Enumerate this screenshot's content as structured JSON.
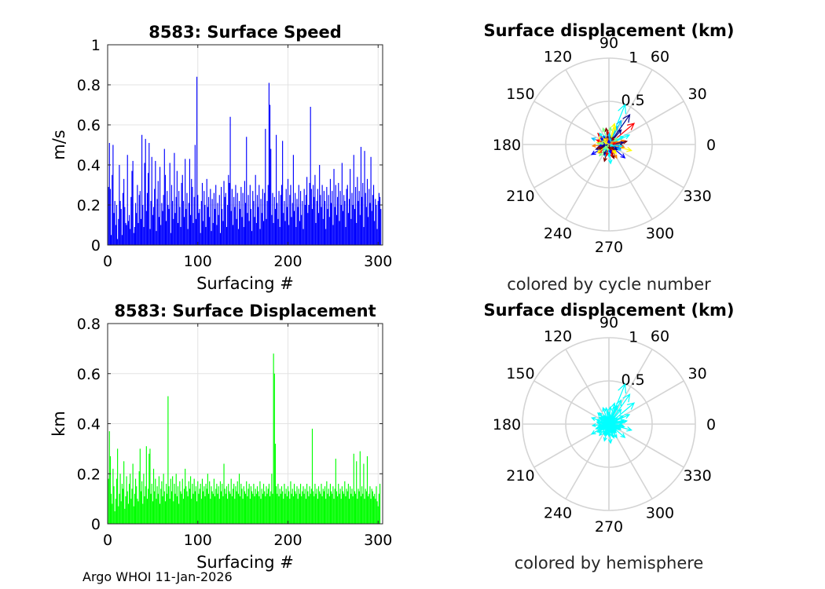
{
  "footer": "Argo WHOI 11-Jan-2026",
  "chart_data": [
    {
      "type": "bar",
      "title": "8583: Surface Speed",
      "xlabel": "Surfacing #",
      "ylabel": "m/s",
      "xlim": [
        0,
        305
      ],
      "ylim": [
        0,
        1
      ],
      "xticks": [
        0,
        100,
        200,
        300
      ],
      "yticks": [
        0,
        0.2,
        0.4,
        0.6,
        0.8,
        1
      ],
      "ytick_labels": [
        "0",
        "0.2",
        "0.4",
        "0.6",
        "0.8",
        "1"
      ],
      "color": "#0000ff",
      "grid": true,
      "values": [
        0.29,
        0.51,
        0.28,
        0.05,
        0.35,
        0.5,
        0.16,
        0.22,
        0.1,
        0.2,
        0.03,
        0.13,
        0.4,
        0.22,
        0.18,
        0.05,
        0.26,
        0.33,
        0.19,
        0.11,
        0.1,
        0.45,
        0.12,
        0.15,
        0.08,
        0.24,
        0.37,
        0.42,
        0.06,
        0.09,
        0.21,
        0.16,
        0.3,
        0.11,
        0.25,
        0.27,
        0.13,
        0.55,
        0.2,
        0.09,
        0.41,
        0.53,
        0.17,
        0.26,
        0.36,
        0.51,
        0.08,
        0.22,
        0.44,
        0.15,
        0.19,
        0.28,
        0.42,
        0.07,
        0.23,
        0.32,
        0.14,
        0.39,
        0.1,
        0.21,
        0.17,
        0.25,
        0.48,
        0.35,
        0.12,
        0.27,
        0.2,
        0.18,
        0.41,
        0.06,
        0.3,
        0.22,
        0.13,
        0.46,
        0.16,
        0.24,
        0.37,
        0.11,
        0.27,
        0.19,
        0.09,
        0.31,
        0.35,
        0.22,
        0.14,
        0.43,
        0.18,
        0.26,
        0.08,
        0.21,
        0.43,
        0.15,
        0.33,
        0.29,
        0.11,
        0.24,
        0.5,
        0.13,
        0.84,
        0.25,
        0.16,
        0.18,
        0.06,
        0.22,
        0.31,
        0.12,
        0.27,
        0.2,
        0.09,
        0.33,
        0.19,
        0.24,
        0.14,
        0.28,
        0.07,
        0.23,
        0.11,
        0.26,
        0.18,
        0.3,
        0.1,
        0.21,
        0.15,
        0.25,
        0.06,
        0.29,
        0.18,
        0.12,
        0.32,
        0.24,
        0.26,
        0.09,
        0.2,
        0.35,
        0.31,
        0.64,
        0.17,
        0.28,
        0.1,
        0.24,
        0.19,
        0.3,
        0.13,
        0.26,
        0.08,
        0.22,
        0.18,
        0.29,
        0.14,
        0.26,
        0.09,
        0.32,
        0.21,
        0.54,
        0.16,
        0.25,
        0.12,
        0.3,
        0.18,
        0.07,
        0.27,
        0.22,
        0.14,
        0.35,
        0.11,
        0.25,
        0.19,
        0.3,
        0.08,
        0.23,
        0.16,
        0.28,
        0.12,
        0.26,
        0.58,
        0.13,
        0.22,
        0.3,
        0.81,
        0.7,
        0.48,
        0.15,
        0.26,
        0.11,
        0.24,
        0.18,
        0.55,
        0.21,
        0.13,
        0.27,
        0.09,
        0.25,
        0.3,
        0.52,
        0.16,
        0.22,
        0.12,
        0.28,
        0.19,
        0.33,
        0.1,
        0.25,
        0.3,
        0.14,
        0.21,
        0.45,
        0.17,
        0.26,
        0.09,
        0.23,
        0.19,
        0.3,
        0.12,
        0.27,
        0.15,
        0.22,
        0.08,
        0.28,
        0.2,
        0.25,
        0.34,
        0.16,
        0.2,
        0.31,
        0.69,
        0.28,
        0.18,
        0.3,
        0.24,
        0.35,
        0.11,
        0.22,
        0.28,
        0.16,
        0.4,
        0.25,
        0.19,
        0.3,
        0.13,
        0.27,
        0.22,
        0.08,
        0.29,
        0.18,
        0.25,
        0.14,
        0.33,
        0.21,
        0.27,
        0.1,
        0.38,
        0.19,
        0.3,
        0.15,
        0.24,
        0.31,
        0.12,
        0.27,
        0.2,
        0.41,
        0.17,
        0.25,
        0.22,
        0.09,
        0.28,
        0.3,
        0.16,
        0.23,
        0.38,
        0.13,
        0.26,
        0.2,
        0.45,
        0.18,
        0.29,
        0.11,
        0.34,
        0.22,
        0.27,
        0.15,
        0.49,
        0.24,
        0.31,
        0.09,
        0.47,
        0.26,
        0.19,
        0.33,
        0.14,
        0.28,
        0.21,
        0.44,
        0.17,
        0.25,
        0.3,
        0.12,
        0.23,
        0.2,
        0.08,
        0.22,
        0.26,
        0.24,
        0.18
      ]
    },
    {
      "type": "bar",
      "title": "8583: Surface Displacement",
      "xlabel": "Surfacing #",
      "ylabel": "km",
      "xlim": [
        0,
        305
      ],
      "ylim": [
        0,
        0.8
      ],
      "xticks": [
        0,
        100,
        200,
        300
      ],
      "yticks": [
        0,
        0.2,
        0.4,
        0.6,
        0.8
      ],
      "ytick_labels": [
        "0",
        "0.2",
        "0.4",
        "0.6",
        "0.8"
      ],
      "color": "#00ff00",
      "grid": true,
      "values": [
        0.18,
        0.37,
        0.27,
        0.12,
        0.08,
        0.22,
        0.15,
        0.05,
        0.1,
        0.18,
        0.3,
        0.07,
        0.12,
        0.2,
        0.09,
        0.16,
        0.14,
        0.25,
        0.06,
        0.11,
        0.19,
        0.13,
        0.08,
        0.16,
        0.2,
        0.1,
        0.14,
        0.24,
        0.07,
        0.12,
        0.18,
        0.15,
        0.1,
        0.09,
        0.21,
        0.3,
        0.13,
        0.17,
        0.08,
        0.2,
        0.11,
        0.15,
        0.31,
        0.1,
        0.14,
        0.28,
        0.3,
        0.12,
        0.16,
        0.09,
        0.22,
        0.13,
        0.18,
        0.1,
        0.15,
        0.12,
        0.19,
        0.08,
        0.14,
        0.17,
        0.11,
        0.2,
        0.13,
        0.09,
        0.16,
        0.12,
        0.51,
        0.15,
        0.1,
        0.18,
        0.13,
        0.19,
        0.09,
        0.16,
        0.12,
        0.2,
        0.11,
        0.15,
        0.08,
        0.17,
        0.13,
        0.12,
        0.18,
        0.1,
        0.14,
        0.22,
        0.15,
        0.13,
        0.11,
        0.17,
        0.14,
        0.19,
        0.1,
        0.16,
        0.12,
        0.18,
        0.13,
        0.15,
        0.09,
        0.17,
        0.12,
        0.14,
        0.16,
        0.1,
        0.18,
        0.13,
        0.15,
        0.11,
        0.16,
        0.14,
        0.2,
        0.12,
        0.17,
        0.1,
        0.15,
        0.13,
        0.12,
        0.18,
        0.11,
        0.14,
        0.16,
        0.12,
        0.15,
        0.1,
        0.17,
        0.13,
        0.16,
        0.11,
        0.24,
        0.14,
        0.12,
        0.15,
        0.1,
        0.16,
        0.13,
        0.12,
        0.18,
        0.11,
        0.14,
        0.16,
        0.1,
        0.15,
        0.13,
        0.17,
        0.12,
        0.2,
        0.11,
        0.16,
        0.14,
        0.1,
        0.15,
        0.13,
        0.12,
        0.17,
        0.11,
        0.14,
        0.16,
        0.1,
        0.15,
        0.13,
        0.12,
        0.16,
        0.11,
        0.14,
        0.12,
        0.15,
        0.13,
        0.11,
        0.17,
        0.1,
        0.14,
        0.12,
        0.16,
        0.13,
        0.11,
        0.15,
        0.12,
        0.14,
        0.16,
        0.11,
        0.13,
        0.2,
        0.12,
        0.68,
        0.6,
        0.32,
        0.15,
        0.12,
        0.16,
        0.11,
        0.14,
        0.12,
        0.15,
        0.13,
        0.1,
        0.16,
        0.12,
        0.14,
        0.11,
        0.15,
        0.13,
        0.1,
        0.17,
        0.12,
        0.14,
        0.11,
        0.16,
        0.13,
        0.12,
        0.15,
        0.1,
        0.14,
        0.12,
        0.16,
        0.11,
        0.13,
        0.15,
        0.12,
        0.14,
        0.1,
        0.16,
        0.13,
        0.11,
        0.15,
        0.12,
        0.14,
        0.38,
        0.13,
        0.11,
        0.16,
        0.12,
        0.14,
        0.1,
        0.15,
        0.13,
        0.12,
        0.16,
        0.11,
        0.14,
        0.13,
        0.15,
        0.1,
        0.17,
        0.12,
        0.14,
        0.11,
        0.16,
        0.13,
        0.12,
        0.15,
        0.1,
        0.14,
        0.26,
        0.13,
        0.11,
        0.16,
        0.12,
        0.14,
        0.1,
        0.15,
        0.13,
        0.12,
        0.17,
        0.11,
        0.14,
        0.13,
        0.16,
        0.1,
        0.15,
        0.12,
        0.14,
        0.11,
        0.28,
        0.13,
        0.12,
        0.25,
        0.1,
        0.14,
        0.13,
        0.29,
        0.11,
        0.15,
        0.12,
        0.24,
        0.1,
        0.14,
        0.13,
        0.27,
        0.11,
        0.12,
        0.15,
        0.1,
        0.14,
        0.13,
        0.11,
        0.12,
        0.1,
        0.15,
        0.09,
        0.07,
        0.12,
        0.16
      ]
    },
    {
      "type": "polar-quiver",
      "title": "Surface displacement (km)",
      "caption": "colored by cycle number",
      "rmax": 1,
      "rticks": [
        0.5,
        1
      ],
      "rtick_labels": [
        "0.5",
        "1"
      ],
      "angle_labels": [
        "0",
        "30",
        "60",
        "90",
        "120",
        "150",
        "180",
        "210",
        "240",
        "270",
        "300",
        "330"
      ],
      "color_scale": [
        "#00008f",
        "#0000ff",
        "#00bfff",
        "#00ffff",
        "#80ff80",
        "#ffff00",
        "#ff8000",
        "#ff0000",
        "#800000"
      ],
      "vectors": [
        [
          0.42,
          55
        ],
        [
          0.5,
          68
        ],
        [
          0.38,
          40
        ],
        [
          0.31,
          63
        ],
        [
          0.25,
          75
        ],
        [
          0.22,
          50
        ],
        [
          0.2,
          110
        ],
        [
          0.18,
          135
        ],
        [
          0.21,
          160
        ],
        [
          0.19,
          185
        ],
        [
          0.23,
          210
        ],
        [
          0.17,
          230
        ],
        [
          0.2,
          255
        ],
        [
          0.22,
          275
        ],
        [
          0.18,
          300
        ],
        [
          0.24,
          320
        ],
        [
          0.27,
          345
        ],
        [
          0.21,
          10
        ],
        [
          0.26,
          25
        ],
        [
          0.15,
          95
        ],
        [
          0.12,
          120
        ],
        [
          0.14,
          170
        ],
        [
          0.16,
          200
        ],
        [
          0.13,
          240
        ],
        [
          0.15,
          285
        ],
        [
          0.12,
          330
        ],
        [
          0.1,
          20
        ],
        [
          0.09,
          80
        ],
        [
          0.11,
          150
        ],
        [
          0.08,
          260
        ],
        [
          0.19,
          30
        ],
        [
          0.16,
          5
        ],
        [
          0.14,
          340
        ],
        [
          0.13,
          310
        ],
        [
          0.17,
          290
        ],
        [
          0.12,
          265
        ],
        [
          0.15,
          220
        ],
        [
          0.11,
          195
        ],
        [
          0.14,
          145
        ],
        [
          0.1,
          100
        ],
        [
          0.2,
          85
        ],
        [
          0.09,
          45
        ],
        [
          0.23,
          65
        ],
        [
          0.18,
          15
        ],
        [
          0.16,
          355
        ],
        [
          0.13,
          175
        ],
        [
          0.12,
          205
        ],
        [
          0.14,
          250
        ],
        [
          0.1,
          315
        ],
        [
          0.11,
          125
        ],
        [
          0.22,
          70
        ],
        [
          0.19,
          100
        ],
        [
          0.17,
          130
        ],
        [
          0.15,
          160
        ],
        [
          0.12,
          190
        ],
        [
          0.16,
          215
        ],
        [
          0.13,
          245
        ],
        [
          0.14,
          270
        ],
        [
          0.11,
          295
        ],
        [
          0.15,
          335
        ],
        [
          0.18,
          350
        ],
        [
          0.17,
          8
        ],
        [
          0.12,
          38
        ],
        [
          0.1,
          58
        ],
        [
          0.13,
          88
        ],
        [
          0.09,
          115
        ],
        [
          0.12,
          142
        ],
        [
          0.1,
          168
        ],
        [
          0.14,
          198
        ],
        [
          0.09,
          225
        ],
        [
          0.13,
          258
        ],
        [
          0.1,
          282
        ],
        [
          0.12,
          305
        ],
        [
          0.11,
          328
        ],
        [
          0.15,
          352
        ],
        [
          0.08,
          12
        ],
        [
          0.07,
          72
        ],
        [
          0.09,
          132
        ],
        [
          0.08,
          192
        ],
        [
          0.07,
          252
        ],
        [
          0.08,
          312
        ],
        [
          0.06,
          42
        ],
        [
          0.07,
          102
        ],
        [
          0.06,
          162
        ],
        [
          0.07,
          222
        ],
        [
          0.06,
          282
        ],
        [
          0.05,
          342
        ],
        [
          0.06,
          32
        ],
        [
          0.05,
          92
        ],
        [
          0.06,
          152
        ]
      ]
    },
    {
      "type": "polar-quiver",
      "title": "Surface displacement (km)",
      "caption": "colored by hemisphere",
      "rmax": 1,
      "rticks": [
        0.5,
        1
      ],
      "rtick_labels": [
        "0.5",
        "1"
      ],
      "angle_labels": [
        "0",
        "30",
        "60",
        "90",
        "120",
        "150",
        "180",
        "210",
        "240",
        "270",
        "300",
        "330"
      ],
      "color": "#00ffff",
      "vectors": [
        [
          0.42,
          55
        ],
        [
          0.5,
          68
        ],
        [
          0.38,
          40
        ],
        [
          0.31,
          63
        ],
        [
          0.25,
          75
        ],
        [
          0.22,
          50
        ],
        [
          0.2,
          110
        ],
        [
          0.18,
          135
        ],
        [
          0.21,
          160
        ],
        [
          0.19,
          185
        ],
        [
          0.23,
          210
        ],
        [
          0.17,
          230
        ],
        [
          0.2,
          255
        ],
        [
          0.22,
          275
        ],
        [
          0.18,
          300
        ],
        [
          0.24,
          320
        ],
        [
          0.27,
          345
        ],
        [
          0.21,
          10
        ],
        [
          0.26,
          25
        ],
        [
          0.15,
          95
        ],
        [
          0.12,
          120
        ],
        [
          0.14,
          170
        ],
        [
          0.16,
          200
        ],
        [
          0.13,
          240
        ],
        [
          0.15,
          285
        ],
        [
          0.12,
          330
        ],
        [
          0.1,
          20
        ],
        [
          0.09,
          80
        ],
        [
          0.11,
          150
        ],
        [
          0.08,
          260
        ],
        [
          0.19,
          30
        ],
        [
          0.16,
          5
        ],
        [
          0.14,
          340
        ],
        [
          0.13,
          310
        ],
        [
          0.17,
          290
        ],
        [
          0.12,
          265
        ],
        [
          0.15,
          220
        ],
        [
          0.11,
          195
        ],
        [
          0.14,
          145
        ],
        [
          0.1,
          100
        ],
        [
          0.2,
          85
        ],
        [
          0.09,
          45
        ],
        [
          0.23,
          65
        ],
        [
          0.18,
          15
        ],
        [
          0.16,
          355
        ],
        [
          0.13,
          175
        ],
        [
          0.12,
          205
        ],
        [
          0.14,
          250
        ],
        [
          0.1,
          315
        ],
        [
          0.11,
          125
        ],
        [
          0.22,
          70
        ],
        [
          0.19,
          100
        ],
        [
          0.17,
          130
        ],
        [
          0.15,
          160
        ],
        [
          0.12,
          190
        ],
        [
          0.16,
          215
        ],
        [
          0.13,
          245
        ],
        [
          0.14,
          270
        ],
        [
          0.11,
          295
        ],
        [
          0.15,
          335
        ],
        [
          0.18,
          350
        ],
        [
          0.17,
          8
        ],
        [
          0.12,
          38
        ],
        [
          0.1,
          58
        ],
        [
          0.13,
          88
        ],
        [
          0.09,
          115
        ],
        [
          0.12,
          142
        ],
        [
          0.1,
          168
        ],
        [
          0.14,
          198
        ],
        [
          0.09,
          225
        ],
        [
          0.13,
          258
        ],
        [
          0.1,
          282
        ],
        [
          0.12,
          305
        ],
        [
          0.11,
          328
        ],
        [
          0.15,
          352
        ],
        [
          0.08,
          12
        ],
        [
          0.07,
          72
        ],
        [
          0.09,
          132
        ],
        [
          0.08,
          192
        ],
        [
          0.07,
          252
        ],
        [
          0.08,
          312
        ],
        [
          0.06,
          42
        ],
        [
          0.07,
          102
        ],
        [
          0.06,
          162
        ],
        [
          0.07,
          222
        ],
        [
          0.06,
          282
        ],
        [
          0.05,
          342
        ],
        [
          0.06,
          32
        ],
        [
          0.05,
          92
        ],
        [
          0.06,
          152
        ]
      ]
    }
  ]
}
